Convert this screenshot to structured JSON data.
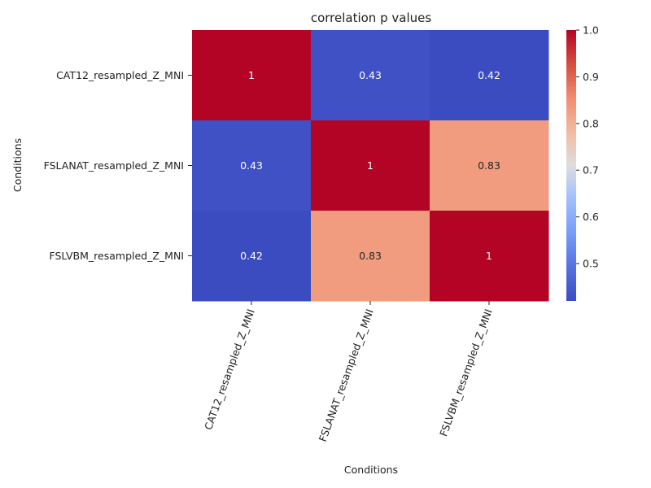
{
  "chart_data": {
    "type": "heatmap",
    "title": "correlation p values",
    "xlabel": "Conditions",
    "ylabel": "Conditions",
    "x_categories": [
      "CAT12_resampled_Z_MNI",
      "FSLANAT_resampled_Z_MNI",
      "FSLVBM_resampled_Z_MNI"
    ],
    "y_categories": [
      "CAT12_resampled_Z_MNI",
      "FSLANAT_resampled_Z_MNI",
      "FSLVBM_resampled_Z_MNI"
    ],
    "values": [
      [
        1,
        0.43,
        0.42
      ],
      [
        0.43,
        1,
        0.83
      ],
      [
        0.42,
        0.83,
        1
      ]
    ],
    "annotations": [
      [
        "1",
        "0.43",
        "0.42"
      ],
      [
        "0.43",
        "1",
        "0.83"
      ],
      [
        "0.42",
        "0.83",
        "1"
      ]
    ],
    "colormap": "coolwarm",
    "vmin": 0.42,
    "vmax": 1.0,
    "colorbar_ticks": [
      0.5,
      0.6,
      0.7,
      0.8,
      0.9,
      1.0
    ],
    "colorbar_tick_labels": [
      "0.5",
      "0.6",
      "0.7",
      "0.8",
      "0.9",
      "1.0"
    ],
    "colors": {
      "low": "#3b4cc0",
      "mid": "#dddddd",
      "high": "#b40426"
    }
  }
}
